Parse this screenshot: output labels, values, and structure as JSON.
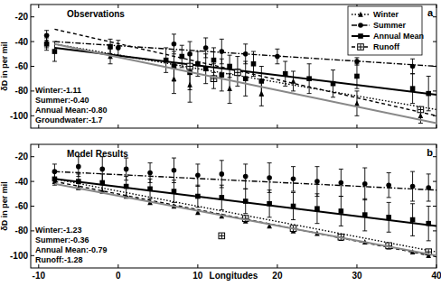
{
  "chart_data": [
    {
      "type": "scatter",
      "title": "Observations",
      "panel_label": "a",
      "y_label": "δD in per mil",
      "xlim": [
        -11,
        40
      ],
      "xticks": [
        -10,
        0,
        10,
        20,
        30,
        40
      ],
      "ylim": [
        -110,
        -10
      ],
      "yticks": [
        -20,
        -40,
        -60,
        -80,
        -100
      ],
      "tick_labels": "y",
      "legend": "upper right",
      "annotations": [
        "Winter:-1.11",
        "Summer:-0.40",
        "Annual Mean:-0.80",
        "Groundwater:-1.7"
      ],
      "series": [
        {
          "name": "Winter",
          "color": "#000000",
          "marker": "triangle",
          "line_style": "dotted",
          "x": [
            -9,
            -1,
            7,
            9,
            12,
            14,
            18,
            22,
            30,
            38
          ],
          "values": [
            -40,
            -52,
            -70,
            -75,
            -68,
            -78,
            -82,
            -72,
            -90,
            -100
          ],
          "errors": [
            5,
            6,
            12,
            14,
            10,
            12,
            10,
            8,
            10,
            6
          ],
          "fit_x": [
            -8,
            40
          ],
          "fit_values": [
            -42,
            -95
          ]
        },
        {
          "name": "Summer",
          "color": "#000000",
          "marker": "circle",
          "line_style": "dashdot",
          "x": [
            -9,
            0,
            7,
            9,
            11,
            13,
            16,
            20,
            30,
            37
          ],
          "values": [
            -35,
            -45,
            -42,
            -50,
            -45,
            -48,
            -50,
            -52,
            -56,
            -60
          ],
          "errors": [
            4,
            6,
            8,
            10,
            8,
            10,
            8,
            6,
            3,
            6
          ],
          "fit_x": [
            -8,
            40
          ],
          "fit_values": [
            -40,
            -60
          ]
        },
        {
          "name": "Annual Mean",
          "color": "#000000",
          "marker": "square",
          "line_style": "solid",
          "x": [
            -9,
            -8,
            -1,
            6,
            7,
            8,
            9,
            10,
            11,
            12,
            13,
            14,
            15,
            16,
            17,
            18,
            21,
            24,
            27,
            30,
            37,
            39
          ],
          "values": [
            -42,
            -48,
            -44,
            -55,
            -60,
            -52,
            -65,
            -58,
            -62,
            -55,
            -67,
            -60,
            -64,
            -70,
            -58,
            -72,
            -66,
            -70,
            -74,
            -68,
            -78,
            -82
          ],
          "errors": [
            5,
            8,
            6,
            10,
            12,
            9,
            14,
            10,
            12,
            10,
            13,
            9,
            12,
            14,
            10,
            12,
            10,
            12,
            11,
            10,
            12,
            14
          ],
          "fit_x": [
            -8,
            40
          ],
          "fit_values": [
            -45,
            -83
          ]
        },
        {
          "name": "Runoff",
          "color": "#000000",
          "marker": "square-cross",
          "line_style": "dashed",
          "x": [
            9,
            12,
            15,
            38
          ],
          "values": [
            -60,
            -70,
            -65,
            -95
          ],
          "fit_x": [
            -8,
            40
          ],
          "fit_values": [
            -30,
            -100
          ]
        },
        {
          "color": "#888888",
          "line_style": "solid",
          "fit_x": [
            -8,
            40
          ],
          "fit_values": [
            -42,
            -106
          ]
        }
      ]
    },
    {
      "type": "scatter",
      "title": "Model Results",
      "panel_label": "b",
      "y_label": "δD in per mil",
      "x_label": "Longitudes",
      "xlim": [
        -11,
        40
      ],
      "xticks": [
        -10,
        0,
        10,
        20,
        30,
        40
      ],
      "ylim": [
        -110,
        -10
      ],
      "yticks": [
        -20,
        -40,
        -60,
        -80,
        -100
      ],
      "annotations": [
        "Winter:-1.23",
        "Summer:-0.36",
        "Annual Mean:-0.79",
        "Runoff:-1.28"
      ],
      "series": [
        {
          "color": "#000000",
          "marker": "triangle",
          "line_style": "dotted",
          "x": [
            -8,
            -5,
            -2,
            1,
            4,
            7,
            10,
            13,
            16,
            19,
            22,
            25,
            28,
            31,
            34,
            37,
            39
          ],
          "values": [
            -40,
            -45,
            -48,
            -52,
            -57,
            -60,
            -65,
            -68,
            -72,
            -76,
            -80,
            -82,
            -86,
            -89,
            -93,
            -97,
            -100
          ],
          "fit_x": [
            -8,
            40
          ],
          "fit_values": [
            -38,
            -97
          ]
        },
        {
          "color": "#000000",
          "marker": "circle",
          "line_style": "dashdot",
          "x": [
            -8,
            -5,
            -2,
            1,
            4,
            7,
            10,
            13,
            16,
            19,
            22,
            25,
            28,
            31,
            34,
            37,
            39
          ],
          "values": [
            -32,
            -28,
            -30,
            -30,
            -33,
            -31,
            -35,
            -34,
            -36,
            -37,
            -38,
            -40,
            -41,
            -42,
            -43,
            -44,
            -45
          ],
          "errors": [
            6,
            8,
            10,
            9,
            8,
            10,
            9,
            11,
            10,
            12,
            10,
            12,
            11,
            13,
            10,
            12,
            11
          ],
          "fit_x": [
            -8,
            40
          ],
          "fit_values": [
            -32,
            -47
          ]
        },
        {
          "color": "#000000",
          "marker": "square",
          "line_style": "solid",
          "x": [
            -8,
            -5,
            -2,
            1,
            4,
            7,
            10,
            13,
            16,
            19,
            22,
            25,
            28,
            31,
            34,
            37,
            39
          ],
          "values": [
            -38,
            -40,
            -41,
            -44,
            -46,
            -48,
            -52,
            -53,
            -56,
            -58,
            -60,
            -62,
            -64,
            -67,
            -69,
            -71,
            -74
          ],
          "errors": [
            5,
            6,
            7,
            8,
            8,
            9,
            9,
            10,
            10,
            11,
            11,
            12,
            12,
            13,
            12,
            13,
            14
          ],
          "fit_x": [
            -8,
            40
          ],
          "fit_values": [
            -38,
            -76
          ]
        },
        {
          "color": "#000000",
          "marker": "square-cross",
          "line_style": "dashed",
          "x": [
            13,
            16,
            22,
            28,
            34,
            39
          ],
          "values": [
            -84,
            -70,
            -78,
            -85,
            -92,
            -97
          ],
          "fit_x": [
            -8,
            40
          ],
          "fit_values": [
            -40,
            -101
          ]
        },
        {
          "color": "#888888",
          "line_style": "solid",
          "fit_x": [
            -8,
            40
          ],
          "fit_values": [
            -42,
            -100
          ]
        }
      ]
    }
  ]
}
